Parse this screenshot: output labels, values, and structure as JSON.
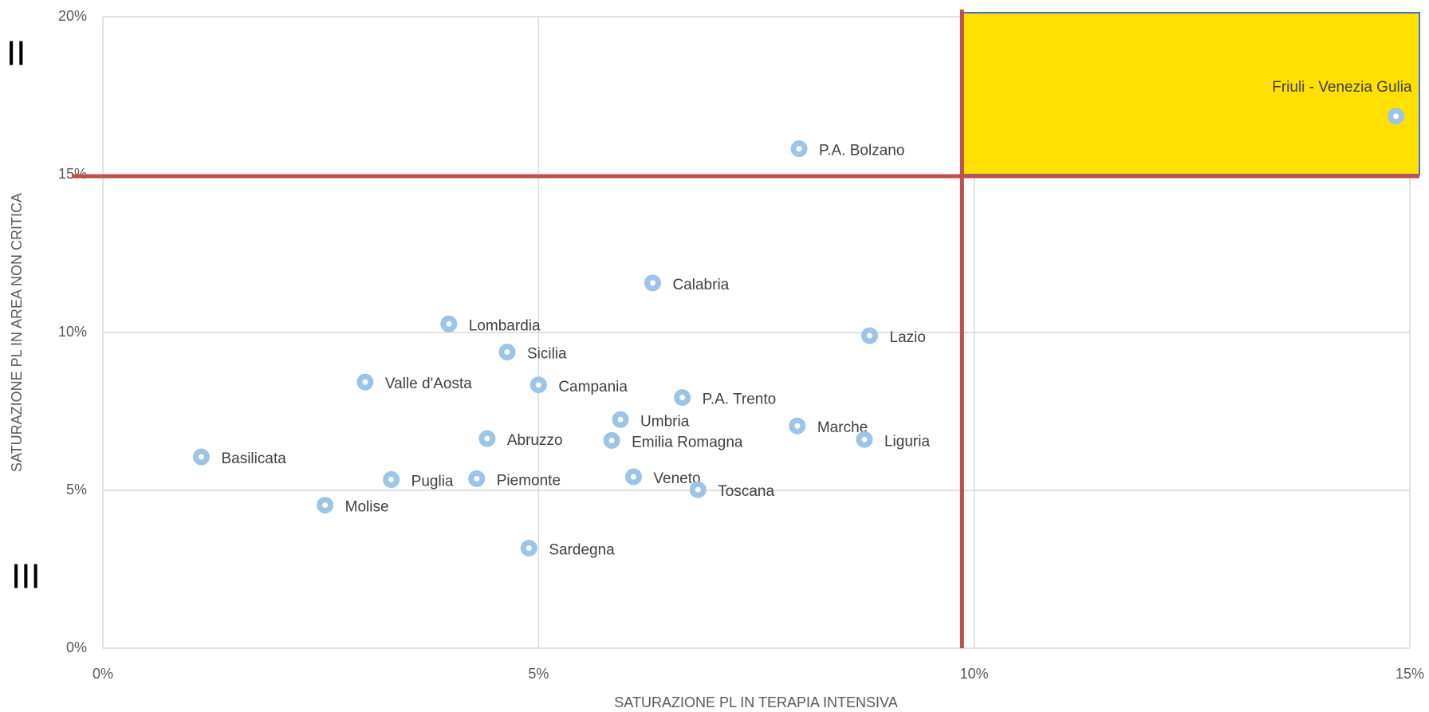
{
  "chart_data": {
    "type": "scatter",
    "x_label": "SATURAZIONE PL IN TERAPIA INTENSIVA",
    "y_label": "SATURAZIONE PL IN AREA NON CRITICA",
    "quadrant_labels": [
      "II",
      "III"
    ],
    "color": "#9dc3e6",
    "highlight_color": "#ffe000",
    "reference_color": "#c0504d",
    "reference_x": 9.86,
    "reference_y": 14.95,
    "grid": true,
    "xlim": [
      0,
      15
    ],
    "ylim": [
      0,
      20
    ],
    "xticks": [
      {
        "value": 0,
        "label": "0%"
      },
      {
        "value": 5,
        "label": "5%"
      },
      {
        "value": 10,
        "label": "10%"
      },
      {
        "value": 15,
        "label": "15%"
      }
    ],
    "yticks": [
      {
        "value": 0,
        "label": "0%"
      },
      {
        "value": 5,
        "label": "5%"
      },
      {
        "value": 10,
        "label": "10%"
      },
      {
        "value": 15,
        "label": "15%"
      },
      {
        "value": 20,
        "label": "20%"
      }
    ],
    "labels": [
      "Friuli - Venezia Gulia",
      "P.A. Bolzano",
      "Calabria",
      "Lombardia",
      "Lazio",
      "Sicilia",
      "Valle d'Aosta",
      "Campania",
      "P.A. Trento",
      "Umbria",
      "Marche",
      "Abruzzo",
      "Emilia Romagna",
      "Liguria",
      "Basilicata",
      "Puglia",
      "Piemonte",
      "Veneto",
      "Toscana",
      "Molise",
      "Sardegna"
    ],
    "x": [
      14.84,
      7.99,
      6.31,
      3.97,
      8.8,
      4.64,
      3.01,
      5.0,
      6.65,
      5.94,
      7.97,
      4.41,
      5.84,
      8.74,
      1.13,
      3.31,
      4.29,
      6.09,
      6.83,
      2.55,
      4.89
    ],
    "values": [
      16.85,
      15.82,
      11.57,
      10.27,
      9.9,
      9.38,
      8.43,
      8.34,
      7.94,
      7.24,
      7.04,
      6.64,
      6.58,
      6.61,
      6.06,
      5.34,
      5.37,
      5.43,
      5.02,
      4.53,
      3.17
    ]
  }
}
